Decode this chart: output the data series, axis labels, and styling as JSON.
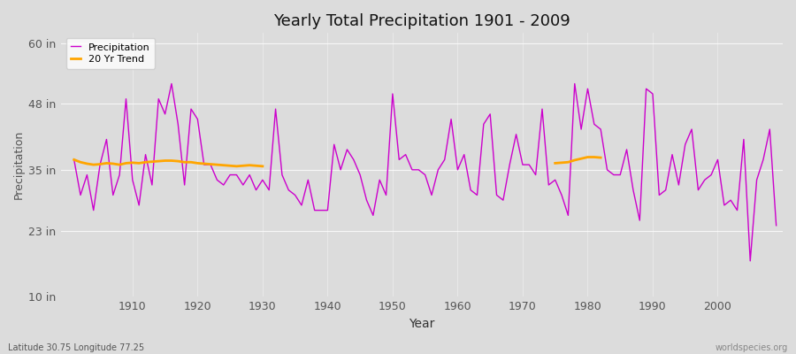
{
  "title": "Yearly Total Precipitation 1901 - 2009",
  "xlabel": "Year",
  "ylabel": "Precipitation",
  "background_color": "#dcdcdc",
  "plot_bg_color": "#dcdcdc",
  "line_color": "#cc00cc",
  "trend_color": "#ffa500",
  "ylim": [
    10,
    62
  ],
  "yticks": [
    10,
    23,
    35,
    48,
    60
  ],
  "ytick_labels": [
    "10 in",
    "23 in",
    "35 in",
    "48 in",
    "60 in"
  ],
  "xticks": [
    1910,
    1920,
    1930,
    1940,
    1950,
    1960,
    1970,
    1980,
    1990,
    2000
  ],
  "xlim": [
    1899,
    2010
  ],
  "years": [
    1901,
    1902,
    1903,
    1904,
    1905,
    1906,
    1907,
    1908,
    1909,
    1910,
    1911,
    1912,
    1913,
    1914,
    1915,
    1916,
    1917,
    1918,
    1919,
    1920,
    1921,
    1922,
    1923,
    1924,
    1925,
    1926,
    1927,
    1928,
    1929,
    1930,
    1931,
    1932,
    1933,
    1934,
    1935,
    1936,
    1937,
    1938,
    1939,
    1940,
    1941,
    1942,
    1943,
    1944,
    1945,
    1946,
    1947,
    1948,
    1949,
    1950,
    1951,
    1952,
    1953,
    1954,
    1955,
    1956,
    1957,
    1958,
    1959,
    1960,
    1961,
    1962,
    1963,
    1964,
    1965,
    1966,
    1967,
    1968,
    1969,
    1970,
    1971,
    1972,
    1973,
    1974,
    1975,
    1976,
    1977,
    1978,
    1979,
    1980,
    1981,
    1982,
    1983,
    1984,
    1985,
    1986,
    1987,
    1988,
    1989,
    1990,
    1991,
    1992,
    1993,
    1994,
    1995,
    1996,
    1997,
    1998,
    1999,
    2000,
    2001,
    2002,
    2003,
    2004,
    2005,
    2006,
    2007,
    2008,
    2009
  ],
  "precipitation": [
    37,
    30,
    34,
    27,
    36,
    41,
    30,
    34,
    49,
    33,
    28,
    38,
    32,
    49,
    46,
    52,
    44,
    32,
    47,
    45,
    36,
    36,
    33,
    32,
    34,
    34,
    32,
    34,
    31,
    33,
    31,
    47,
    34,
    31,
    30,
    28,
    33,
    27,
    27,
    27,
    40,
    35,
    39,
    37,
    34,
    29,
    26,
    33,
    30,
    50,
    37,
    38,
    35,
    35,
    34,
    30,
    35,
    37,
    45,
    35,
    38,
    31,
    30,
    44,
    46,
    30,
    29,
    36,
    42,
    36,
    36,
    34,
    47,
    32,
    33,
    30,
    26,
    52,
    43,
    51,
    44,
    43,
    35,
    34,
    34,
    39,
    31,
    25,
    51,
    50,
    30,
    31,
    38,
    32,
    40,
    43,
    31,
    33,
    34,
    37,
    28,
    29,
    27,
    41,
    17,
    33,
    37,
    43,
    24
  ],
  "trend_segment1_years": [
    1901,
    1902,
    1903,
    1904,
    1905,
    1906,
    1907,
    1908,
    1909,
    1910,
    1911,
    1912,
    1913,
    1914,
    1915,
    1916,
    1917,
    1918,
    1919,
    1920,
    1921,
    1922,
    1923,
    1924,
    1925,
    1926,
    1927,
    1928,
    1929,
    1930
  ],
  "trend_segment1_values": [
    37.0,
    36.5,
    36.2,
    36.0,
    36.1,
    36.3,
    36.2,
    36.0,
    36.3,
    36.4,
    36.3,
    36.5,
    36.6,
    36.7,
    36.8,
    36.8,
    36.7,
    36.5,
    36.5,
    36.3,
    36.2,
    36.1,
    36.0,
    35.9,
    35.8,
    35.7,
    35.8,
    35.9,
    35.8,
    35.7
  ],
  "trend_segment2_years": [
    1975,
    1976,
    1977,
    1978,
    1979,
    1980,
    1981,
    1982
  ],
  "trend_segment2_values": [
    36.3,
    36.4,
    36.5,
    36.9,
    37.2,
    37.5,
    37.5,
    37.4
  ],
  "subtitle": "Latitude 30.75 Longitude 77.25",
  "watermark": "worldspecies.org",
  "legend_precipitation": "Precipitation",
  "legend_trend": "20 Yr Trend",
  "figsize": [
    9.0,
    4.0
  ],
  "dpi": 100
}
